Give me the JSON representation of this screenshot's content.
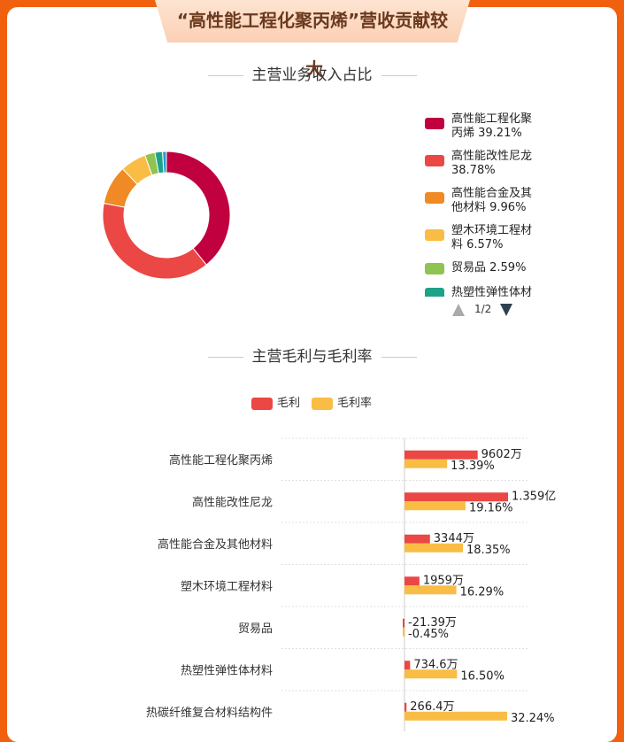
{
  "header": {
    "title": "“高性能工程化聚丙烯”营收贡献较",
    "title_wrap": "大"
  },
  "sections": {
    "revenue_share": "主营业务收入占比",
    "gross_profit": "主营毛利与毛利率"
  },
  "pager": {
    "text": "1/2"
  },
  "colors": {
    "pp": "#c0003f",
    "nylon": "#eb4744",
    "alloy": "#ef8a24",
    "wood": "#f9bd45",
    "trade": "#8fc352",
    "elastomer": "#1ea287",
    "fiber": "#1f9ed6",
    "profit": "#eb4744",
    "margin": "#f9bd45"
  },
  "chart_data": [
    {
      "type": "pie",
      "title": "主营业务收入占比",
      "legend": "right",
      "slices": [
        {
          "name": "高性能工程化聚丙烯",
          "label": "高性能工程化聚丙烯 39.21%",
          "value": 39.21,
          "color": "#c0003f"
        },
        {
          "name": "高性能改性尼龙",
          "label": "高性能改性尼龙 38.78%",
          "value": 38.78,
          "color": "#eb4744"
        },
        {
          "name": "高性能合金及其他材料",
          "label": "高性能合金及其他材料 9.96%",
          "value": 9.96,
          "color": "#ef8a24"
        },
        {
          "name": "塑木环境工程材料",
          "label": "塑木环境工程材料 6.57%",
          "value": 6.57,
          "color": "#f9bd45"
        },
        {
          "name": "贸易品",
          "label": "贸易品 2.59%",
          "value": 2.59,
          "color": "#8fc352"
        },
        {
          "name": "热塑性弹性体材料",
          "label": "热塑性弹性体材料",
          "value": 1.91,
          "color": "#1ea287"
        },
        {
          "name": "热碳纤维复合材料结构件",
          "label": "",
          "value": 0.98,
          "color": "#1f9ed6"
        }
      ]
    },
    {
      "type": "bar",
      "orientation": "horizontal",
      "title": "主营毛利与毛利率",
      "legend": "top-center",
      "categories": [
        "高性能工程化聚丙烯",
        "高性能改性尼龙",
        "高性能合金及其他材料",
        "塑木环境工程材料",
        "贸易品",
        "热塑性弹性体材料",
        "热碳纤维复合材料结构件"
      ],
      "series": [
        {
          "name": "毛利",
          "values": [
            9602,
            13590,
            3344,
            1959,
            -21.39,
            734.6,
            266.4
          ],
          "labels": [
            "9602万",
            "1.359亿",
            "3344万",
            "1959万",
            "-21.39万",
            "734.6万",
            "266.4万"
          ],
          "unit": "万元"
        },
        {
          "name": "毛利率",
          "values": [
            13.39,
            19.16,
            18.35,
            16.29,
            -0.45,
            16.5,
            32.24
          ],
          "labels": [
            "13.39%",
            "19.16%",
            "18.35%",
            "16.29%",
            "-0.45%",
            "16.50%",
            "32.24%"
          ],
          "unit": "%"
        }
      ]
    }
  ]
}
